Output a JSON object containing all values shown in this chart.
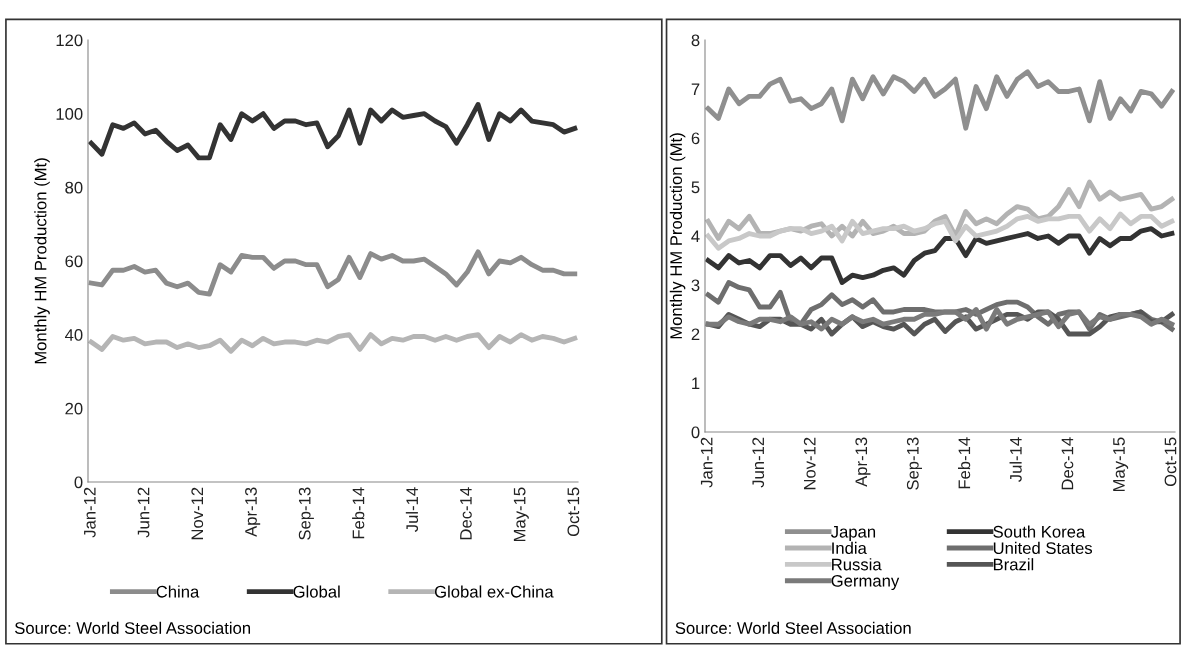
{
  "chart_data": [
    {
      "type": "line",
      "ylabel": "Monthly HM Production (Mt)",
      "categories": [
        "Jan-12",
        null,
        null,
        null,
        null,
        "Jun-12",
        null,
        null,
        null,
        null,
        "Nov-12",
        null,
        null,
        null,
        null,
        "Apr-13",
        null,
        null,
        null,
        null,
        "Sep-13",
        null,
        null,
        null,
        null,
        "Feb-14",
        null,
        null,
        null,
        null,
        "Jul-14",
        null,
        null,
        null,
        null,
        "Dec-14",
        null,
        null,
        null,
        null,
        "May-15",
        null,
        null,
        null,
        null,
        "Oct-15"
      ],
      "ylim": [
        0,
        120
      ],
      "yticks": [
        0,
        20,
        40,
        60,
        80,
        100,
        120
      ],
      "grid": false,
      "legend": "bottom",
      "line_style": "solid",
      "marker": "none",
      "series": [
        {
          "name": "China",
          "color": "#8c8c8c",
          "values": [
            54,
            53.5,
            57.5,
            57.5,
            58.5,
            57,
            57.5,
            54,
            53,
            54,
            51.5,
            51,
            59,
            57,
            61.5,
            61,
            61,
            58,
            60,
            60,
            59,
            59,
            53,
            55,
            61,
            55.5,
            62,
            60.5,
            61.5,
            60,
            60,
            60.5,
            58.5,
            56.5,
            53.5,
            57,
            62.5,
            56.5,
            60,
            59.5,
            61,
            59,
            57.5,
            57.5,
            56.5,
            56.5
          ]
        },
        {
          "name": "Global",
          "color": "#333333",
          "values": [
            92,
            89,
            97,
            96,
            97.5,
            94.5,
            95.5,
            92.5,
            90,
            91.5,
            88,
            88,
            97,
            93,
            100,
            98,
            100,
            96,
            98,
            98,
            97,
            97.5,
            91,
            94,
            101,
            92,
            101,
            98,
            101,
            99,
            99.5,
            100,
            98,
            96.5,
            92,
            97,
            102.5,
            93,
            100,
            98,
            101,
            98,
            97.5,
            97,
            95,
            96
          ]
        },
        {
          "name": "Global ex-China",
          "color": "#b5b5b5",
          "values": [
            38,
            36,
            39.5,
            38.5,
            39,
            37.5,
            38,
            38,
            36.5,
            37.5,
            36.5,
            37,
            38.5,
            35.5,
            38.5,
            37,
            39,
            37.5,
            38,
            38,
            37.5,
            38.5,
            38,
            39.5,
            40,
            36,
            40,
            37.5,
            39,
            38.5,
            39.5,
            39.5,
            38.5,
            39.5,
            38.5,
            39.5,
            40,
            36.5,
            39.5,
            38,
            40,
            38.5,
            39.5,
            39,
            38,
            39
          ]
        }
      ],
      "annotations": [
        "Source: World Steel Association"
      ]
    },
    {
      "type": "line",
      "ylabel": "Monthly HM Production (Mt)",
      "categories": [
        "Jan-12",
        null,
        null,
        null,
        null,
        "Jun-12",
        null,
        null,
        null,
        null,
        "Nov-12",
        null,
        null,
        null,
        null,
        "Apr-13",
        null,
        null,
        null,
        null,
        "Sep-13",
        null,
        null,
        null,
        null,
        "Feb-14",
        null,
        null,
        null,
        null,
        "Jul-14",
        null,
        null,
        null,
        null,
        "Dec-14",
        null,
        null,
        null,
        null,
        "May-15",
        null,
        null,
        null,
        null,
        "Oct-15"
      ],
      "ylim": [
        0,
        8
      ],
      "yticks": [
        0,
        1,
        2,
        3,
        4,
        5,
        6,
        7,
        8
      ],
      "grid": false,
      "legend": "bottom",
      "line_style": "solid",
      "marker": "none",
      "series": [
        {
          "name": "Japan",
          "color": "#8f8f8f",
          "values": [
            6.6,
            6.4,
            7.0,
            6.7,
            6.85,
            6.85,
            7.1,
            7.2,
            6.75,
            6.8,
            6.6,
            6.7,
            7.0,
            6.35,
            7.2,
            6.8,
            7.25,
            6.9,
            7.25,
            7.15,
            6.95,
            7.2,
            6.85,
            7.0,
            7.2,
            6.2,
            7.05,
            6.6,
            7.25,
            6.85,
            7.2,
            7.35,
            7.05,
            7.15,
            6.95,
            6.95,
            7.0,
            6.35,
            7.15,
            6.4,
            6.8,
            6.55,
            6.95,
            6.9,
            6.65,
            6.95
          ]
        },
        {
          "name": "South Korea",
          "color": "#333333",
          "values": [
            3.5,
            3.35,
            3.6,
            3.45,
            3.5,
            3.35,
            3.6,
            3.6,
            3.4,
            3.55,
            3.35,
            3.55,
            3.55,
            3.05,
            3.2,
            3.15,
            3.2,
            3.3,
            3.35,
            3.2,
            3.5,
            3.65,
            3.7,
            3.95,
            3.95,
            3.6,
            3.95,
            3.85,
            3.9,
            3.95,
            4.0,
            4.05,
            3.95,
            4.0,
            3.85,
            4.0,
            4.0,
            3.65,
            3.95,
            3.8,
            3.95,
            3.95,
            4.1,
            4.15,
            4.0,
            4.05
          ]
        },
        {
          "name": "India",
          "color": "#b3b3b3",
          "values": [
            4.3,
            3.95,
            4.3,
            4.15,
            4.4,
            4.05,
            4.05,
            4.1,
            4.15,
            4.1,
            4.2,
            4.25,
            4.0,
            4.2,
            4.0,
            4.3,
            4.05,
            4.1,
            4.2,
            4.05,
            4.05,
            4.1,
            4.3,
            4.4,
            4.0,
            4.5,
            4.25,
            4.35,
            4.25,
            4.45,
            4.6,
            4.55,
            4.35,
            4.4,
            4.6,
            4.95,
            4.6,
            5.1,
            4.75,
            4.9,
            4.75,
            4.8,
            4.85,
            4.55,
            4.6,
            4.75
          ]
        },
        {
          "name": "United States",
          "color": "#6e6e6e",
          "values": [
            2.8,
            2.65,
            3.05,
            2.95,
            2.9,
            2.55,
            2.55,
            2.85,
            2.25,
            2.2,
            2.5,
            2.6,
            2.8,
            2.6,
            2.7,
            2.55,
            2.7,
            2.45,
            2.45,
            2.5,
            2.5,
            2.5,
            2.45,
            2.45,
            2.45,
            2.5,
            2.4,
            2.5,
            2.6,
            2.65,
            2.65,
            2.55,
            2.35,
            2.2,
            2.4,
            2.45,
            2.45,
            2.1,
            2.4,
            2.3,
            2.35,
            2.4,
            2.45,
            2.3,
            2.25,
            2.1
          ]
        },
        {
          "name": "Russia",
          "color": "#c8c8c8",
          "values": [
            4.0,
            3.75,
            3.9,
            3.95,
            4.05,
            4.0,
            4.0,
            4.1,
            4.15,
            4.15,
            4.05,
            4.1,
            4.2,
            3.9,
            4.3,
            4.05,
            4.1,
            4.15,
            4.15,
            4.2,
            4.1,
            4.15,
            4.25,
            4.3,
            3.9,
            4.2,
            4.0,
            4.05,
            4.1,
            4.2,
            4.35,
            4.4,
            4.3,
            4.35,
            4.35,
            4.4,
            4.4,
            4.1,
            4.35,
            4.15,
            4.45,
            4.25,
            4.4,
            4.4,
            4.2,
            4.3
          ]
        },
        {
          "name": "Brazil",
          "color": "#555555",
          "values": [
            2.2,
            2.15,
            2.4,
            2.3,
            2.2,
            2.15,
            2.3,
            2.3,
            2.2,
            2.2,
            2.1,
            2.3,
            2.0,
            2.2,
            2.35,
            2.15,
            2.25,
            2.15,
            2.1,
            2.2,
            2.0,
            2.2,
            2.3,
            2.05,
            2.25,
            2.35,
            2.1,
            2.2,
            2.3,
            2.4,
            2.4,
            2.3,
            2.45,
            2.45,
            2.3,
            2.0,
            2.0,
            2.0,
            2.15,
            2.35,
            2.4,
            2.4,
            2.45,
            2.25,
            2.25,
            2.4
          ]
        },
        {
          "name": "Germany",
          "color": "#7a7a7a",
          "values": [
            2.2,
            2.2,
            2.35,
            2.25,
            2.2,
            2.3,
            2.3,
            2.25,
            2.35,
            2.2,
            2.25,
            2.1,
            2.3,
            2.2,
            2.35,
            2.25,
            2.3,
            2.2,
            2.25,
            2.3,
            2.3,
            2.4,
            2.4,
            2.45,
            2.45,
            2.3,
            2.5,
            2.1,
            2.5,
            2.2,
            2.3,
            2.35,
            2.4,
            2.45,
            2.15,
            2.4,
            2.45,
            2.2,
            2.35,
            2.3,
            2.4,
            2.4,
            2.35,
            2.2,
            2.3,
            2.2
          ]
        }
      ],
      "annotations": [
        "Source: World Steel Association"
      ]
    }
  ]
}
